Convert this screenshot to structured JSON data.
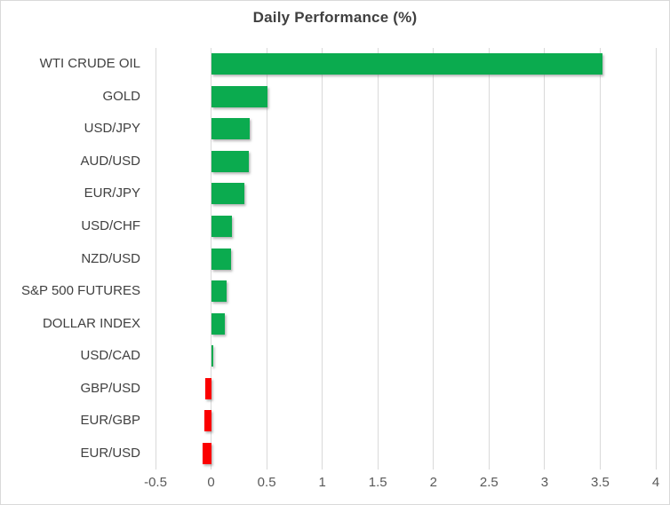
{
  "chart_data": {
    "type": "bar",
    "orientation": "horizontal",
    "title": "Daily Performance (%)",
    "categories": [
      "WTI CRUDE OIL",
      "GOLD",
      "USD/JPY",
      "AUD/USD",
      "EUR/JPY",
      "USD/CHF",
      "NZD/USD",
      "S&P 500 FUTURES",
      "DOLLAR INDEX",
      "USD/CAD",
      "GBP/USD",
      "EUR/GBP",
      "EUR/USD"
    ],
    "values": [
      3.52,
      0.51,
      0.35,
      0.34,
      0.3,
      0.19,
      0.18,
      0.14,
      0.12,
      0.02,
      -0.05,
      -0.06,
      -0.08
    ],
    "xlim": [
      -0.5,
      4
    ],
    "xticks": [
      -0.5,
      0,
      0.5,
      1,
      1.5,
      2,
      2.5,
      3,
      3.5,
      4
    ],
    "xtick_labels": [
      "-0.5",
      "0",
      "0.5",
      "1",
      "1.5",
      "2",
      "2.5",
      "3",
      "3.5",
      "4"
    ],
    "grid": "vertical",
    "legend": "none",
    "xlabel": "",
    "ylabel": "",
    "colors": {
      "positive_bar": "#0bab4f",
      "negative_bar": "#fb0000",
      "gridline": "#d9d9d9",
      "title_text": "#404040",
      "category_text": "#404040",
      "tick_text": "#595959",
      "background": "#ffffff",
      "frame_border": "#d9d9d9"
    }
  }
}
